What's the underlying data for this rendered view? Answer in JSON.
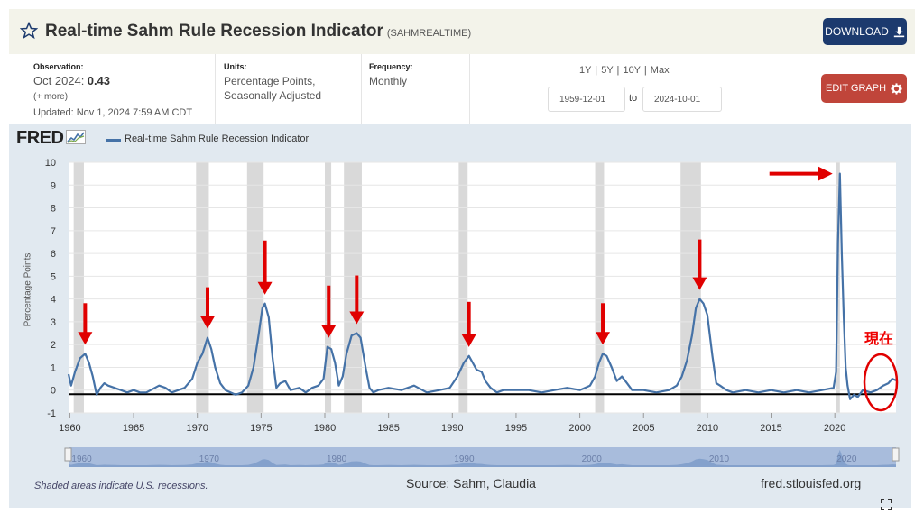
{
  "header": {
    "title": "Real-time Sahm Rule Recession Indicator",
    "series_code": "(SAHMREALTIME)",
    "download_label": "DOWNLOAD"
  },
  "meta": {
    "observation_label": "Observation:",
    "observation_date": "Oct 2024:",
    "observation_value": "0.43",
    "more": "(+ more)",
    "updated": "Updated: Nov 1, 2024 7:59 AM CDT",
    "units_label": "Units:",
    "units_line1": "Percentage Points,",
    "units_line2": "Seasonally Adjusted",
    "frequency_label": "Frequency:",
    "frequency_value": "Monthly",
    "ranges": "1Y | 5Y | 10Y | Max",
    "date_from": "1959-12-01",
    "to_label": "to",
    "date_to": "2024-10-01",
    "edit_label": "EDIT GRAPH"
  },
  "chart_data": {
    "type": "line",
    "title": "Real-time Sahm Rule Recession Indicator",
    "ylabel": "Percentage Points",
    "ylim": [
      -1,
      10
    ],
    "yticks": [
      -1,
      0,
      1,
      2,
      3,
      4,
      5,
      6,
      7,
      8,
      9,
      10
    ],
    "xlim": [
      1959.9,
      2024.8
    ],
    "xticks": [
      1960,
      1965,
      1970,
      1975,
      1980,
      1985,
      1990,
      1995,
      2000,
      2005,
      2010,
      2015,
      2020
    ],
    "navigator_labels": [
      "1960",
      "1970",
      "1980",
      "1990",
      "2000",
      "2010",
      "2020"
    ],
    "recessions": [
      [
        1960.3,
        1961.1
      ],
      [
        1969.9,
        1970.9
      ],
      [
        1973.9,
        1975.2
      ],
      [
        1980.0,
        1980.5
      ],
      [
        1981.5,
        1982.9
      ],
      [
        1990.5,
        1991.2
      ],
      [
        2001.2,
        2001.9
      ],
      [
        2007.9,
        2009.5
      ],
      [
        2020.1,
        2020.4
      ]
    ],
    "series": [
      {
        "name": "Real-time Sahm Rule Recession Indicator",
        "x": [
          1959.9,
          1960.1,
          1960.4,
          1960.8,
          1961.2,
          1961.5,
          1961.8,
          1962.1,
          1962.4,
          1962.7,
          1963.0,
          1963.5,
          1964.0,
          1964.5,
          1965.0,
          1965.5,
          1966.0,
          1967.0,
          1967.5,
          1968.0,
          1969.0,
          1969.6,
          1970.0,
          1970.4,
          1970.8,
          1971.1,
          1971.4,
          1971.8,
          1972.2,
          1972.6,
          1973.0,
          1973.5,
          1974.0,
          1974.4,
          1974.8,
          1975.1,
          1975.3,
          1975.6,
          1975.9,
          1976.2,
          1976.5,
          1976.9,
          1977.3,
          1978.0,
          1978.5,
          1979.0,
          1979.5,
          1979.9,
          1980.2,
          1980.5,
          1980.8,
          1981.1,
          1981.4,
          1981.7,
          1982.1,
          1982.5,
          1982.8,
          1983.2,
          1983.5,
          1983.8,
          1984.2,
          1985.0,
          1986.0,
          1987.0,
          1988.0,
          1989.0,
          1989.8,
          1990.4,
          1990.9,
          1991.3,
          1991.6,
          1991.9,
          1992.3,
          1992.6,
          1993.0,
          1993.5,
          1994.0,
          1995.0,
          1996.0,
          1997.0,
          1998.0,
          1999.0,
          2000.0,
          2000.8,
          2001.2,
          2001.5,
          2001.8,
          2002.1,
          2002.5,
          2002.9,
          2003.3,
          2003.7,
          2004.1,
          2005.0,
          2006.0,
          2007.0,
          2007.6,
          2008.0,
          2008.4,
          2008.8,
          2009.1,
          2009.4,
          2009.7,
          2010.0,
          2010.4,
          2010.7,
          2011.0,
          2011.5,
          2012.0,
          2013.0,
          2014.0,
          2015.0,
          2016.0,
          2017.0,
          2018.0,
          2019.0,
          2019.9,
          2020.1,
          2020.25,
          2020.4,
          2020.55,
          2020.7,
          2020.85,
          2021.0,
          2021.2,
          2021.5,
          2021.8,
          2022.2,
          2022.8,
          2023.3,
          2023.8,
          2024.2,
          2024.5,
          2024.8
        ],
        "y": [
          0.7,
          0.2,
          0.8,
          1.4,
          1.6,
          1.2,
          0.6,
          -0.2,
          0.1,
          0.3,
          0.2,
          0.1,
          0.0,
          -0.1,
          0.0,
          -0.1,
          -0.1,
          0.2,
          0.1,
          -0.1,
          0.1,
          0.5,
          1.2,
          1.6,
          2.3,
          1.8,
          1.0,
          0.3,
          0.0,
          -0.1,
          -0.2,
          -0.1,
          0.2,
          1.0,
          2.4,
          3.6,
          3.8,
          3.2,
          1.4,
          0.1,
          0.3,
          0.4,
          0.0,
          0.1,
          -0.1,
          0.1,
          0.2,
          0.5,
          1.9,
          1.8,
          1.2,
          0.2,
          0.6,
          1.6,
          2.4,
          2.5,
          2.3,
          1.0,
          0.1,
          -0.1,
          0.0,
          0.1,
          0.0,
          0.2,
          -0.1,
          0.0,
          0.1,
          0.6,
          1.2,
          1.5,
          1.2,
          0.9,
          0.8,
          0.4,
          0.1,
          -0.1,
          0.0,
          0.0,
          0.0,
          -0.1,
          0.0,
          0.1,
          0.0,
          0.2,
          0.6,
          1.2,
          1.6,
          1.5,
          1.0,
          0.4,
          0.6,
          0.3,
          0.0,
          0.0,
          -0.1,
          0.0,
          0.2,
          0.6,
          1.3,
          2.4,
          3.6,
          4.0,
          3.8,
          3.3,
          1.5,
          0.3,
          0.2,
          0.0,
          -0.1,
          0.0,
          -0.1,
          0.0,
          -0.1,
          0.0,
          -0.1,
          0.0,
          0.1,
          0.8,
          6.5,
          9.5,
          6.0,
          3.2,
          1.0,
          0.2,
          -0.4,
          -0.2,
          -0.3,
          0.0,
          -0.1,
          0.0,
          0.2,
          0.3,
          0.5,
          0.43
        ]
      }
    ]
  },
  "annotations": {
    "now_label": "現在"
  },
  "footer": {
    "shade_note": "Shaded areas indicate U.S. recessions.",
    "source": "Source: Sahm, Claudia",
    "site": "fred.stlouisfed.org"
  },
  "colors": {
    "series": "#4572a7",
    "recession": "#d9d9d9",
    "arrow": "#e00000",
    "download_bg": "#1c3a6e",
    "edit_bg": "#c0453a"
  }
}
